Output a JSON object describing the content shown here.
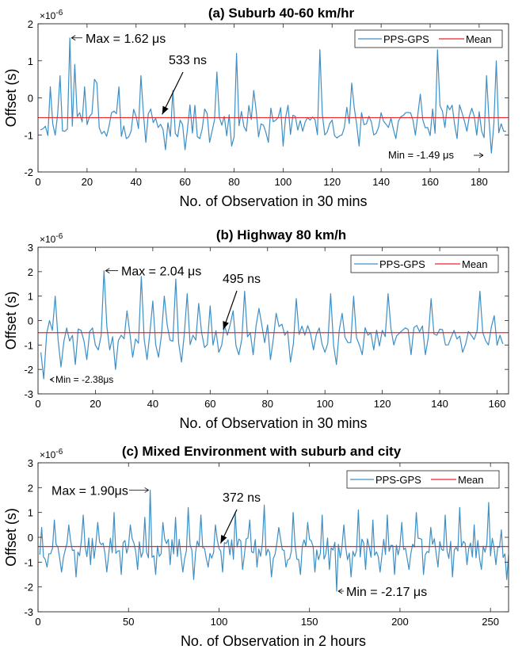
{
  "colors": {
    "series": "#3d8fc6",
    "mean": "#e8262b",
    "axis": "#222222"
  },
  "chart_data": [
    {
      "type": "line",
      "title": "(a)  Suburb 40-60 km/hr",
      "xlabel": "No. of Observation in 30 mins",
      "ylabel": "Offset (s)",
      "exponent_base": "×10",
      "exponent_power": "-6",
      "xlim": [
        0,
        192
      ],
      "ylim": [
        -2,
        2
      ],
      "xticks": [
        0,
        20,
        40,
        60,
        80,
        100,
        120,
        140,
        160,
        180
      ],
      "yticks": [
        -2,
        -1,
        0,
        1,
        2
      ],
      "legend": {
        "series_name": "PPS-GPS",
        "mean_name": "Mean"
      },
      "mean": -0.533,
      "annotations": {
        "max": {
          "text": "Max = 1.62 μs",
          "x": 13,
          "y": 1.62
        },
        "mean": {
          "text": "533 ns",
          "x": 50,
          "y": -0.533
        },
        "min": {
          "text": "Min = -1.49 μs",
          "x": 185,
          "y": -1.49
        }
      },
      "n_points": 191,
      "max_value": 1.62,
      "min_value": -1.49,
      "spikes": [
        [
          5,
          0.3
        ],
        [
          6,
          -0.7
        ],
        [
          9,
          0.6
        ],
        [
          11,
          -0.9
        ],
        [
          13,
          1.62
        ],
        [
          15,
          0.9
        ],
        [
          17,
          -0.4
        ],
        [
          19,
          0.3
        ],
        [
          21,
          -0.5
        ],
        [
          23,
          0.5
        ],
        [
          24,
          0.4
        ],
        [
          27,
          -0.9
        ],
        [
          30,
          -0.4
        ],
        [
          33,
          0.3
        ],
        [
          36,
          -1.1
        ],
        [
          40,
          -0.5
        ],
        [
          42,
          0.6
        ],
        [
          44,
          -1.2
        ],
        [
          46,
          -0.3
        ],
        [
          49,
          -0.8
        ],
        [
          52,
          -1.4
        ],
        [
          55,
          0.2
        ],
        [
          58,
          -0.6
        ],
        [
          60,
          -1.4
        ],
        [
          64,
          -0.2
        ],
        [
          66,
          -1.1
        ],
        [
          68,
          -0.3
        ],
        [
          70,
          -1.2
        ],
        [
          73,
          0.7
        ],
        [
          76,
          -0.5
        ],
        [
          79,
          -1.3
        ],
        [
          81,
          1.2
        ],
        [
          85,
          -0.9
        ],
        [
          88,
          0.2
        ],
        [
          91,
          -0.7
        ],
        [
          94,
          -1.2
        ],
        [
          97,
          -0.6
        ],
        [
          100,
          -1.3
        ],
        [
          102,
          -0.2
        ],
        [
          105,
          -0.5
        ],
        [
          108,
          -0.9
        ],
        [
          111,
          -0.6
        ],
        [
          115,
          1.3
        ],
        [
          117,
          -1.0
        ],
        [
          120,
          -0.6
        ],
        [
          125,
          -0.8
        ],
        [
          128,
          0.4
        ],
        [
          131,
          -1.3
        ],
        [
          134,
          -0.7
        ],
        [
          137,
          -1.0
        ],
        [
          140,
          -0.4
        ],
        [
          143,
          -0.8
        ],
        [
          146,
          -1.1
        ],
        [
          150,
          -0.4
        ],
        [
          153,
          -0.6
        ],
        [
          156,
          0.1
        ],
        [
          159,
          -0.8
        ],
        [
          161,
          -0.3
        ],
        [
          163,
          1.3
        ],
        [
          166,
          -0.8
        ],
        [
          169,
          -0.2
        ],
        [
          171,
          -1.1
        ],
        [
          173,
          -0.4
        ],
        [
          175,
          -0.9
        ],
        [
          178,
          -0.5
        ],
        [
          181,
          -0.9
        ],
        [
          183,
          0.6
        ],
        [
          185,
          -1.49
        ],
        [
          187,
          1.0
        ],
        [
          189,
          -0.7
        ],
        [
          190,
          -0.9
        ]
      ],
      "seed": 11
    },
    {
      "type": "line",
      "title": "(b)  Highway 80 km/h",
      "xlabel": "No. of Observation in 30 mins",
      "ylabel": "Offset (s)",
      "exponent_base": "×10",
      "exponent_power": "-6",
      "xlim": [
        0,
        164
      ],
      "ylim": [
        -3,
        3
      ],
      "xticks": [
        0,
        20,
        40,
        60,
        80,
        100,
        120,
        140,
        160
      ],
      "yticks": [
        -3,
        -2,
        -1,
        0,
        1,
        2,
        3
      ],
      "legend": {
        "series_name": "PPS-GPS",
        "mean_name": "Mean"
      },
      "mean": -0.495,
      "annotations": {
        "max": {
          "text": "Max = 2.04 μs",
          "x": 23,
          "y": 2.04
        },
        "mean": {
          "text": "495 ns",
          "x": 64,
          "y": -0.495
        },
        "min": {
          "text": "Min = -2.38μs",
          "x": 2,
          "y": -2.38
        }
      },
      "n_points": 162,
      "max_value": 2.04,
      "min_value": -2.38,
      "spikes": [
        [
          1,
          -1.3
        ],
        [
          2,
          -2.38
        ],
        [
          4,
          0.0
        ],
        [
          6,
          1.0
        ],
        [
          8,
          -1.9
        ],
        [
          10,
          -0.3
        ],
        [
          13,
          -1.8
        ],
        [
          15,
          -0.4
        ],
        [
          17,
          -1.6
        ],
        [
          19,
          -0.3
        ],
        [
          21,
          -1.2
        ],
        [
          23,
          2.04
        ],
        [
          25,
          -1.2
        ],
        [
          27,
          -2.0
        ],
        [
          29,
          -0.6
        ],
        [
          31,
          0.4
        ],
        [
          33,
          -1.5
        ],
        [
          36,
          1.8
        ],
        [
          38,
          -1.6
        ],
        [
          40,
          0.8
        ],
        [
          42,
          -1.5
        ],
        [
          44,
          1.0
        ],
        [
          46,
          -0.8
        ],
        [
          48,
          1.7
        ],
        [
          50,
          -1.7
        ],
        [
          52,
          1.1
        ],
        [
          54,
          -0.6
        ],
        [
          56,
          0.7
        ],
        [
          58,
          -1.1
        ],
        [
          60,
          0.6
        ],
        [
          63,
          -1.3
        ],
        [
          66,
          -0.6
        ],
        [
          68,
          0.4
        ],
        [
          70,
          -1.4
        ],
        [
          72,
          1.2
        ],
        [
          75,
          -1.4
        ],
        [
          77,
          0.5
        ],
        [
          79,
          -0.9
        ],
        [
          81,
          -1.6
        ],
        [
          83,
          0.3
        ],
        [
          86,
          -0.6
        ],
        [
          88,
          -1.7
        ],
        [
          90,
          0.9
        ],
        [
          93,
          -0.6
        ],
        [
          96,
          -1.2
        ],
        [
          98,
          -0.3
        ],
        [
          100,
          -1.3
        ],
        [
          102,
          1.1
        ],
        [
          104,
          -1.8
        ],
        [
          106,
          0.3
        ],
        [
          108,
          -0.9
        ],
        [
          110,
          1.0
        ],
        [
          113,
          -1.4
        ],
        [
          115,
          -0.6
        ],
        [
          117,
          -1.2
        ],
        [
          120,
          -0.4
        ],
        [
          122,
          1.1
        ],
        [
          124,
          -1.0
        ],
        [
          127,
          -0.4
        ],
        [
          130,
          -1.4
        ],
        [
          132,
          -0.2
        ],
        [
          135,
          -1.4
        ],
        [
          137,
          0.9
        ],
        [
          139,
          -0.6
        ],
        [
          142,
          -1.0
        ],
        [
          145,
          -0.4
        ],
        [
          148,
          -1.3
        ],
        [
          151,
          -0.6
        ],
        [
          154,
          1.2
        ],
        [
          157,
          -1.0
        ],
        [
          159,
          0.2
        ],
        [
          161,
          -0.6
        ]
      ],
      "seed": 23
    },
    {
      "type": "line",
      "title": "(c)  Mixed Environment with suburb and city",
      "xlabel": "No. of Observation in 2 hours",
      "ylabel": "Offset (s)",
      "exponent_base": "×10",
      "exponent_power": "-6",
      "xlim": [
        0,
        260
      ],
      "ylim": [
        -3,
        3
      ],
      "xticks": [
        0,
        50,
        100,
        150,
        200,
        250
      ],
      "yticks": [
        -3,
        -2,
        -1,
        0,
        1,
        2,
        3
      ],
      "legend": {
        "series_name": "PPS-GPS",
        "mean_name": "Mean"
      },
      "mean": -0.372,
      "annotations": {
        "max": {
          "text": "Max = 1.90μs",
          "x": 62,
          "y": 1.9
        },
        "mean": {
          "text": "372 ns",
          "x": 100,
          "y": -0.372
        },
        "min": {
          "text": "Min = -2.17 μs",
          "x": 165,
          "y": -2.17
        }
      },
      "n_points": 260,
      "max_value": 1.9,
      "min_value": -2.17,
      "spikes": [
        [
          2,
          0.4
        ],
        [
          5,
          -1.2
        ],
        [
          9,
          0.7
        ],
        [
          13,
          -1.4
        ],
        [
          17,
          0.5
        ],
        [
          21,
          -1.6
        ],
        [
          25,
          0.9
        ],
        [
          29,
          -1.1
        ],
        [
          33,
          0.6
        ],
        [
          38,
          -1.4
        ],
        [
          42,
          1.0
        ],
        [
          46,
          -1.5
        ],
        [
          51,
          0.5
        ],
        [
          55,
          -1.3
        ],
        [
          59,
          0.8
        ],
        [
          62,
          1.9
        ],
        [
          65,
          -1.5
        ],
        [
          69,
          0.6
        ],
        [
          73,
          -1.1
        ],
        [
          76,
          0.8
        ],
        [
          80,
          -1.4
        ],
        [
          83,
          1.2
        ],
        [
          86,
          -1.7
        ],
        [
          90,
          0.9
        ],
        [
          94,
          -1.2
        ],
        [
          98,
          0.5
        ],
        [
          102,
          -1.4
        ],
        [
          105,
          -0.1
        ],
        [
          109,
          1.0
        ],
        [
          113,
          -1.3
        ],
        [
          117,
          0.7
        ],
        [
          121,
          -1.2
        ],
        [
          125,
          1.3
        ],
        [
          129,
          -1.6
        ],
        [
          133,
          0.4
        ],
        [
          137,
          -1.2
        ],
        [
          141,
          1.0
        ],
        [
          145,
          -1.5
        ],
        [
          149,
          0.6
        ],
        [
          153,
          -1.4
        ],
        [
          157,
          0.9
        ],
        [
          161,
          -1.3
        ],
        [
          165,
          -2.17
        ],
        [
          169,
          0.5
        ],
        [
          173,
          -1.6
        ],
        [
          177,
          1.1
        ],
        [
          181,
          -1.3
        ],
        [
          185,
          0.7
        ],
        [
          189,
          -1.4
        ],
        [
          193,
          0.9
        ],
        [
          197,
          -1.5
        ],
        [
          201,
          0.6
        ],
        [
          205,
          -1.3
        ],
        [
          209,
          1.0
        ],
        [
          213,
          -1.5
        ],
        [
          217,
          0.4
        ],
        [
          221,
          -1.2
        ],
        [
          225,
          0.9
        ],
        [
          229,
          -1.6
        ],
        [
          233,
          1.2
        ],
        [
          237,
          -1.1
        ],
        [
          241,
          0.5
        ],
        [
          245,
          -1.3
        ],
        [
          249,
          1.4
        ],
        [
          253,
          -1.1
        ],
        [
          256,
          0.3
        ],
        [
          259,
          -1.7
        ]
      ],
      "seed": 37
    }
  ]
}
